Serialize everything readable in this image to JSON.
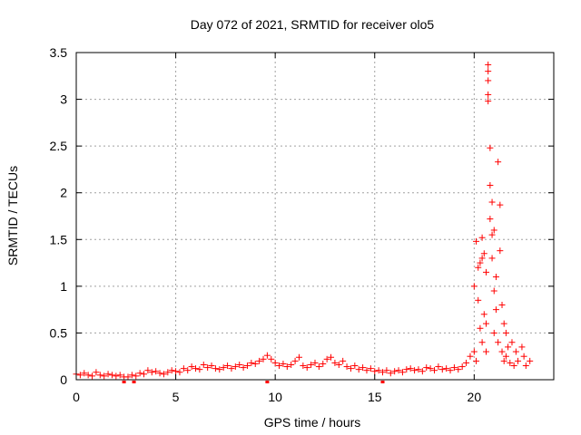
{
  "chart_data": {
    "type": "scatter",
    "title": "Day 072 of 2021, SRMTID for receiver olo5",
    "xlabel": "GPS time / hours",
    "ylabel": "SRMTID / TECUs",
    "xlim": [
      0,
      24
    ],
    "ylim": [
      0,
      3.5
    ],
    "xticks": [
      0,
      5,
      10,
      15,
      20
    ],
    "xtick_labels": [
      "0",
      "5",
      "10",
      "15",
      "20"
    ],
    "yticks": [
      0,
      0.5,
      1,
      1.5,
      2,
      2.5,
      3,
      3.5
    ],
    "ytick_labels": [
      "0",
      "0.5",
      "1",
      "1.5",
      "2",
      "2.5",
      "3",
      "3.5"
    ],
    "grid": true,
    "marker": "+",
    "color": "#ff0000",
    "series": [
      {
        "name": "SRMTID",
        "points": [
          [
            0.0,
            0.06
          ],
          [
            0.2,
            0.05
          ],
          [
            0.4,
            0.07
          ],
          [
            0.6,
            0.05
          ],
          [
            0.8,
            0.04
          ],
          [
            1.0,
            0.08
          ],
          [
            1.2,
            0.05
          ],
          [
            1.4,
            0.04
          ],
          [
            1.6,
            0.06
          ],
          [
            1.8,
            0.05
          ],
          [
            2.0,
            0.04
          ],
          [
            2.2,
            0.05
          ],
          [
            2.4,
            0.03
          ],
          [
            2.6,
            0.03
          ],
          [
            2.8,
            0.05
          ],
          [
            3.0,
            0.04
          ],
          [
            3.2,
            0.07
          ],
          [
            3.4,
            0.06
          ],
          [
            3.6,
            0.1
          ],
          [
            3.8,
            0.08
          ],
          [
            4.0,
            0.09
          ],
          [
            4.2,
            0.07
          ],
          [
            4.4,
            0.06
          ],
          [
            4.6,
            0.08
          ],
          [
            4.8,
            0.1
          ],
          [
            5.0,
            0.09
          ],
          [
            5.2,
            0.08
          ],
          [
            5.4,
            0.12
          ],
          [
            5.6,
            0.1
          ],
          [
            5.8,
            0.14
          ],
          [
            6.0,
            0.12
          ],
          [
            6.2,
            0.11
          ],
          [
            6.4,
            0.16
          ],
          [
            6.6,
            0.13
          ],
          [
            6.8,
            0.15
          ],
          [
            7.0,
            0.12
          ],
          [
            7.2,
            0.11
          ],
          [
            7.4,
            0.13
          ],
          [
            7.6,
            0.15
          ],
          [
            7.8,
            0.12
          ],
          [
            8.0,
            0.14
          ],
          [
            8.2,
            0.16
          ],
          [
            8.4,
            0.13
          ],
          [
            8.6,
            0.15
          ],
          [
            8.8,
            0.18
          ],
          [
            9.0,
            0.17
          ],
          [
            9.2,
            0.2
          ],
          [
            9.4,
            0.22
          ],
          [
            9.6,
            0.26
          ],
          [
            9.8,
            0.22
          ],
          [
            10.0,
            0.18
          ],
          [
            10.2,
            0.15
          ],
          [
            10.4,
            0.17
          ],
          [
            10.6,
            0.14
          ],
          [
            10.8,
            0.16
          ],
          [
            11.0,
            0.2
          ],
          [
            11.2,
            0.24
          ],
          [
            11.4,
            0.15
          ],
          [
            11.6,
            0.13
          ],
          [
            11.8,
            0.16
          ],
          [
            12.0,
            0.18
          ],
          [
            12.2,
            0.14
          ],
          [
            12.4,
            0.17
          ],
          [
            12.6,
            0.22
          ],
          [
            12.8,
            0.24
          ],
          [
            13.0,
            0.18
          ],
          [
            13.2,
            0.16
          ],
          [
            13.4,
            0.2
          ],
          [
            13.6,
            0.14
          ],
          [
            13.8,
            0.12
          ],
          [
            14.0,
            0.15
          ],
          [
            14.2,
            0.11
          ],
          [
            14.4,
            0.13
          ],
          [
            14.6,
            0.1
          ],
          [
            14.8,
            0.12
          ],
          [
            15.0,
            0.09
          ],
          [
            15.2,
            0.1
          ],
          [
            15.4,
            0.08
          ],
          [
            15.6,
            0.1
          ],
          [
            15.8,
            0.07
          ],
          [
            16.0,
            0.09
          ],
          [
            16.2,
            0.1
          ],
          [
            16.4,
            0.08
          ],
          [
            16.6,
            0.11
          ],
          [
            16.8,
            0.12
          ],
          [
            17.0,
            0.1
          ],
          [
            17.2,
            0.11
          ],
          [
            17.4,
            0.09
          ],
          [
            17.6,
            0.13
          ],
          [
            17.8,
            0.12
          ],
          [
            18.0,
            0.1
          ],
          [
            18.2,
            0.14
          ],
          [
            18.4,
            0.11
          ],
          [
            18.6,
            0.12
          ],
          [
            18.8,
            0.1
          ],
          [
            19.0,
            0.13
          ],
          [
            19.2,
            0.11
          ],
          [
            19.4,
            0.14
          ],
          [
            19.6,
            0.18
          ],
          [
            19.8,
            0.25
          ],
          [
            20.0,
            0.3
          ],
          [
            20.0,
            1.0
          ],
          [
            20.1,
            0.2
          ],
          [
            20.1,
            1.48
          ],
          [
            20.2,
            1.2
          ],
          [
            20.2,
            0.85
          ],
          [
            20.3,
            1.25
          ],
          [
            20.3,
            0.55
          ],
          [
            20.4,
            0.4
          ],
          [
            20.4,
            1.52
          ],
          [
            20.4,
            1.3
          ],
          [
            20.5,
            1.35
          ],
          [
            20.5,
            0.7
          ],
          [
            20.6,
            0.6
          ],
          [
            20.6,
            1.15
          ],
          [
            20.6,
            0.3
          ],
          [
            20.7,
            3.37
          ],
          [
            20.7,
            3.3
          ],
          [
            20.7,
            3.2
          ],
          [
            20.7,
            3.05
          ],
          [
            20.7,
            2.98
          ],
          [
            20.8,
            2.48
          ],
          [
            20.8,
            2.08
          ],
          [
            20.8,
            1.72
          ],
          [
            20.9,
            1.9
          ],
          [
            20.9,
            1.55
          ],
          [
            20.9,
            1.3
          ],
          [
            21.0,
            0.95
          ],
          [
            21.0,
            1.6
          ],
          [
            21.0,
            0.5
          ],
          [
            21.1,
            1.1
          ],
          [
            21.1,
            0.75
          ],
          [
            21.2,
            2.33
          ],
          [
            21.2,
            0.4
          ],
          [
            21.3,
            1.87
          ],
          [
            21.3,
            1.38
          ],
          [
            21.4,
            0.8
          ],
          [
            21.4,
            0.3
          ],
          [
            21.5,
            0.6
          ],
          [
            21.5,
            0.2
          ],
          [
            21.6,
            0.5
          ],
          [
            21.6,
            0.25
          ],
          [
            21.7,
            0.35
          ],
          [
            21.8,
            0.18
          ],
          [
            21.9,
            0.4
          ],
          [
            22.0,
            0.15
          ],
          [
            22.1,
            0.3
          ],
          [
            22.2,
            0.2
          ],
          [
            22.4,
            0.35
          ],
          [
            22.5,
            0.25
          ],
          [
            22.6,
            0.15
          ],
          [
            22.8,
            0.2
          ]
        ]
      }
    ],
    "outliers_below_axis": [
      2.4,
      2.9,
      9.6,
      15.4
    ]
  }
}
